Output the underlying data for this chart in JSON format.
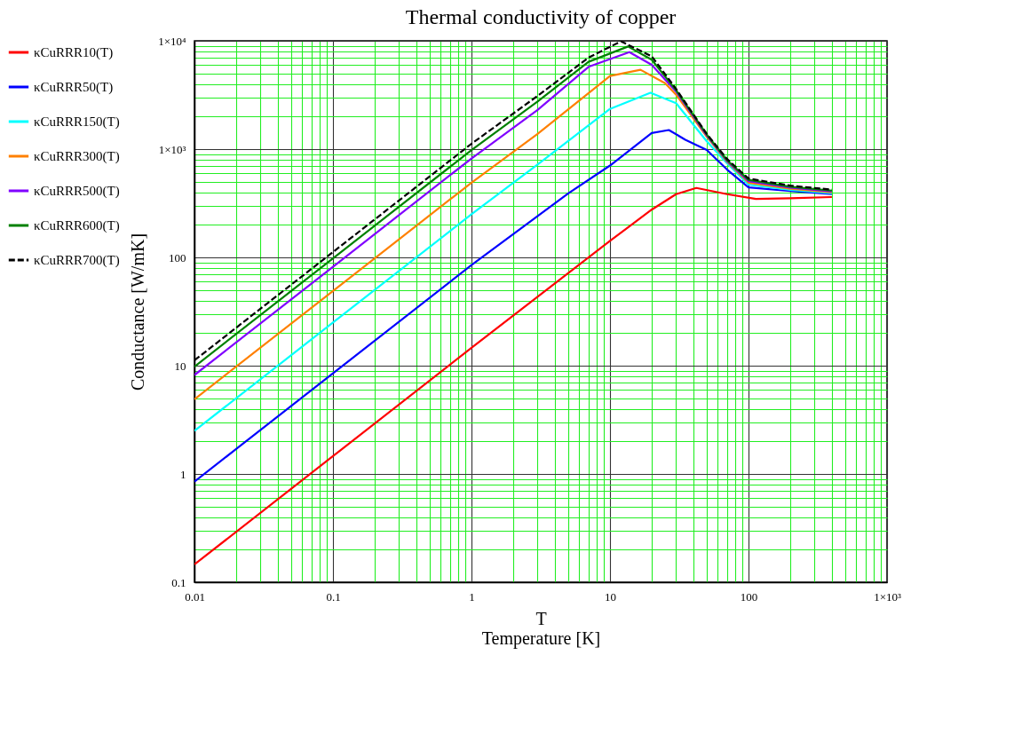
{
  "chart_data": {
    "type": "line",
    "title": "Thermal conductivity of copper",
    "xlabel": "Temperature [K]",
    "ylabel": "Conductance [W/mK]",
    "annotations": [
      "T"
    ],
    "log": "xy",
    "grid": true,
    "legend": "left",
    "xlim": [
      0.01,
      1000
    ],
    "xticks": [
      0.01,
      {
        "value": 0.02,
        "label": null
      },
      {
        "value": 0.03,
        "label": null
      },
      {
        "value": 0.04,
        "label": null
      },
      {
        "value": 0.05,
        "label": null
      },
      {
        "value": 0.06,
        "label": null
      },
      {
        "value": 0.07,
        "label": null
      },
      {
        "value": 0.08,
        "label": null
      },
      {
        "value": 0.09,
        "label": null
      },
      0.1,
      {
        "value": 0.2,
        "label": null
      },
      {
        "value": 0.3,
        "label": null
      },
      {
        "value": 0.4,
        "label": null
      },
      {
        "value": 0.5,
        "label": null
      },
      {
        "value": 0.6,
        "label": null
      },
      {
        "value": 0.7,
        "label": null
      },
      {
        "value": 0.8,
        "label": null
      },
      {
        "value": 0.9,
        "label": null
      },
      1,
      {
        "value": 2,
        "label": null
      },
      {
        "value": 3,
        "label": null
      },
      {
        "value": 4,
        "label": null
      },
      {
        "value": 5,
        "label": null
      },
      {
        "value": 6,
        "label": null
      },
      {
        "value": 7,
        "label": null
      },
      {
        "value": 8,
        "label": null
      },
      {
        "value": 9,
        "label": null
      },
      10,
      {
        "value": 20,
        "label": null
      },
      {
        "value": 30,
        "label": null
      },
      {
        "value": 40,
        "label": null
      },
      {
        "value": 50,
        "label": null
      },
      {
        "value": 60,
        "label": null
      },
      {
        "value": 70,
        "label": null
      },
      {
        "value": 80,
        "label": null
      },
      {
        "value": 90,
        "label": null
      },
      100,
      {
        "value": 200,
        "label": null
      },
      {
        "value": 300,
        "label": null
      },
      {
        "value": 400,
        "label": null
      },
      {
        "value": 500,
        "label": null
      },
      {
        "value": 600,
        "label": null
      },
      {
        "value": 700,
        "label": null
      },
      {
        "value": 800,
        "label": null
      },
      {
        "value": 900,
        "label": null
      },
      {
        "value": 1000,
        "label": "1×10³"
      }
    ],
    "ylim": [
      0.1,
      10000
    ],
    "yticks": [
      0.1,
      {
        "value": 0.2,
        "label": null
      },
      {
        "value": 0.3,
        "label": null
      },
      {
        "value": 0.4,
        "label": null
      },
      {
        "value": 0.5,
        "label": null
      },
      {
        "value": 0.6,
        "label": null
      },
      {
        "value": 0.7,
        "label": null
      },
      {
        "value": 0.8,
        "label": null
      },
      {
        "value": 0.9,
        "label": null
      },
      1,
      {
        "value": 2,
        "label": null
      },
      {
        "value": 3,
        "label": null
      },
      {
        "value": 4,
        "label": null
      },
      {
        "value": 5,
        "label": null
      },
      {
        "value": 6,
        "label": null
      },
      {
        "value": 7,
        "label": null
      },
      {
        "value": 8,
        "label": null
      },
      {
        "value": 9,
        "label": null
      },
      10,
      {
        "value": 20,
        "label": null
      },
      {
        "value": 30,
        "label": null
      },
      {
        "value": 40,
        "label": null
      },
      {
        "value": 50,
        "label": null
      },
      {
        "value": 60,
        "label": null
      },
      {
        "value": 70,
        "label": null
      },
      {
        "value": 80,
        "label": null
      },
      {
        "value": 90,
        "label": null
      },
      100,
      {
        "value": 200,
        "label": null
      },
      {
        "value": 300,
        "label": null
      },
      {
        "value": 400,
        "label": null
      },
      {
        "value": 500,
        "label": null
      },
      {
        "value": 600,
        "label": null
      },
      {
        "value": 700,
        "label": null
      },
      {
        "value": 800,
        "label": null
      },
      {
        "value": 900,
        "label": null
      },
      {
        "value": 1000,
        "label": "1×10³"
      },
      {
        "value": 2000,
        "label": null
      },
      {
        "value": 3000,
        "label": null
      },
      {
        "value": 4000,
        "label": null
      },
      {
        "value": 5000,
        "label": null
      },
      {
        "value": 6000,
        "label": null
      },
      {
        "value": 7000,
        "label": null
      },
      {
        "value": 8000,
        "label": null
      },
      {
        "value": 9000,
        "label": null
      },
      {
        "value": 10000,
        "label": "1×10⁴"
      }
    ],
    "series": [
      {
        "name": "κCuRRR10(T)",
        "color": "#ff0000",
        "line_style": "solid",
        "x": [
          0.01,
          0.1,
          1,
          10,
          20,
          30,
          42,
          70,
          113,
          200,
          400
        ],
        "values": [
          0.146,
          1.46,
          14.6,
          142,
          276,
          384,
          438,
          384,
          347,
          352,
          361
        ]
      },
      {
        "name": "κCuRRR50(T)",
        "color": "#0000ff",
        "line_style": "solid",
        "x": [
          0.01,
          0.1,
          1,
          5,
          10,
          20,
          26.6,
          35,
          50,
          70,
          100,
          200,
          400
        ],
        "values": [
          0.85,
          8.5,
          85,
          390,
          705,
          1410,
          1500,
          1220,
          980,
          647,
          443,
          410,
          385
        ]
      },
      {
        "name": "κCuRRR150(T)",
        "color": "#00ffff",
        "line_style": "solid",
        "x": [
          0.01,
          0.1,
          1,
          3,
          10,
          19.6,
          30,
          50,
          70,
          100,
          200,
          400
        ],
        "values": [
          2.5,
          25,
          250,
          720,
          2350,
          3320,
          2660,
          1180,
          740,
          470,
          420,
          392
        ]
      },
      {
        "name": "κCuRRR300(T)",
        "color": "#ff8000",
        "line_style": "solid",
        "x": [
          0.01,
          0.1,
          1,
          3,
          10,
          16.6,
          25,
          30,
          50,
          70,
          100,
          200,
          400
        ],
        "values": [
          4.9,
          49,
          490,
          1380,
          4740,
          5400,
          4060,
          3180,
          1300,
          765,
          490,
          430,
          399
        ]
      },
      {
        "name": "κCuRRR500(T)",
        "color": "#8000ff",
        "line_style": "solid",
        "x": [
          0.01,
          0.1,
          1,
          3,
          7,
          13.8,
          20,
          30,
          50,
          70,
          100,
          200,
          400
        ],
        "values": [
          8.2,
          82,
          820,
          2300,
          5750,
          7870,
          6000,
          3400,
          1330,
          775,
          505,
          440,
          406
        ]
      },
      {
        "name": "κCuRRR600(T)",
        "color": "#008000",
        "line_style": "solid",
        "x": [
          0.01,
          0.1,
          1,
          3,
          7,
          13.5,
          20,
          30,
          50,
          70,
          100,
          200,
          400
        ],
        "values": [
          9.8,
          98,
          980,
          2750,
          6400,
          8870,
          6700,
          3500,
          1360,
          790,
          520,
          450,
          414
        ]
      },
      {
        "name": "κCuRRR700(T)",
        "color": "#000000",
        "line_style": "dashed",
        "x": [
          0.01,
          0.1,
          1,
          3,
          7,
          12,
          20,
          30,
          50,
          70,
          100,
          200,
          400
        ],
        "values": [
          11.2,
          112,
          1120,
          3100,
          7000,
          9890,
          7200,
          3600,
          1380,
          810,
          535,
          460,
          422
        ]
      }
    ]
  }
}
